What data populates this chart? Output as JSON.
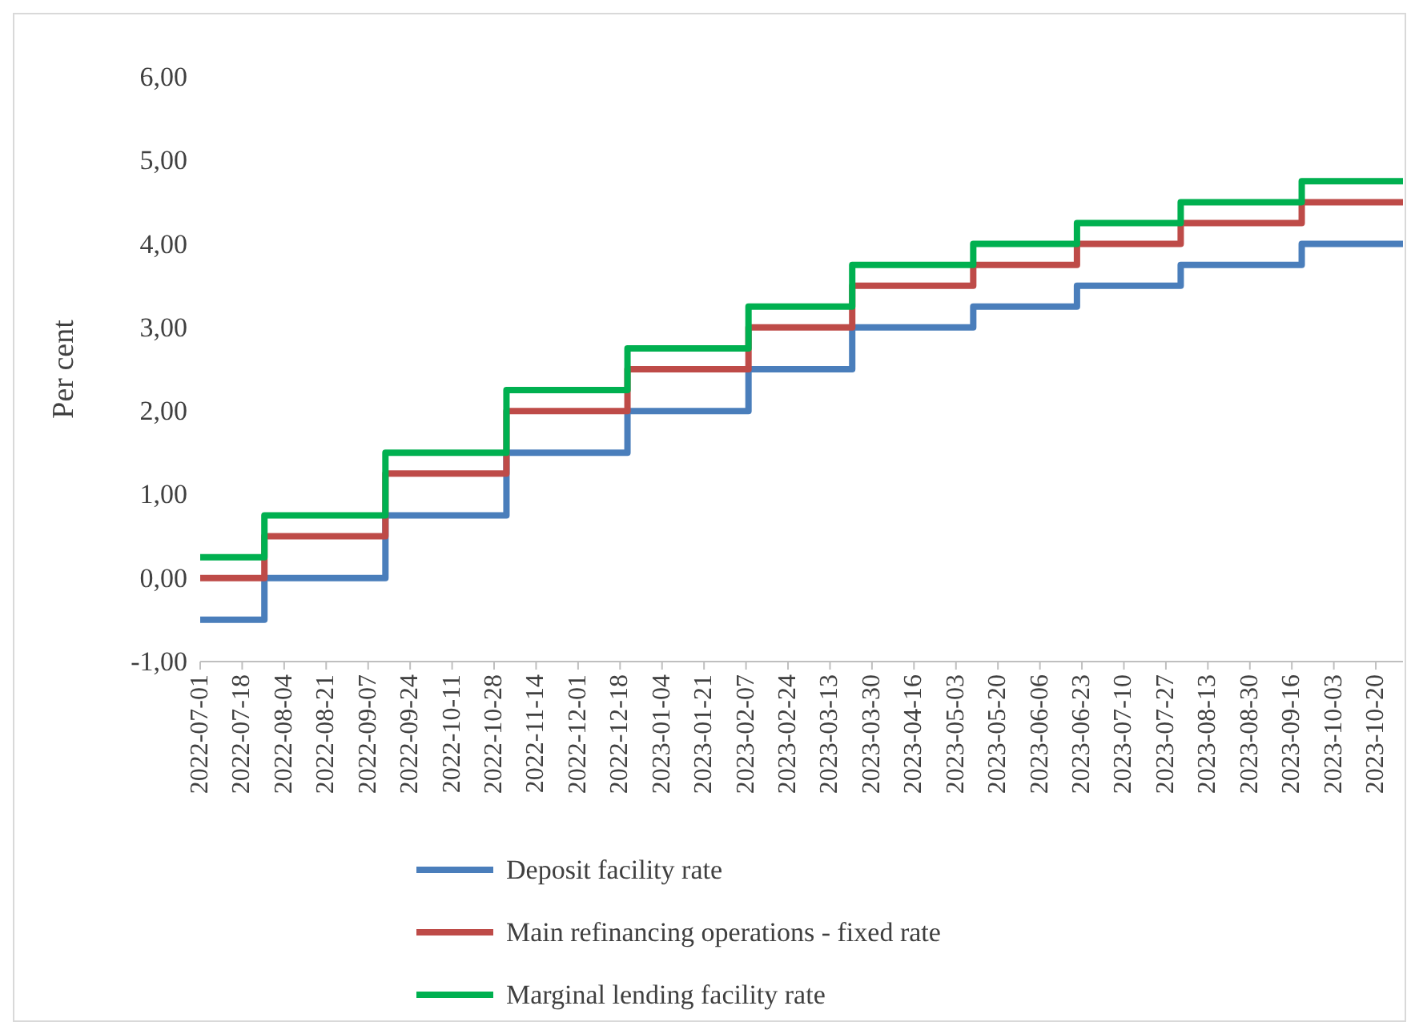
{
  "chart_data": {
    "type": "step",
    "ylabel": "Per cent",
    "xlim": [
      "2022-07-01",
      "2023-10-31"
    ],
    "ylim": [
      -1,
      6
    ],
    "yticks": [
      {
        "value": -1,
        "label": "-1,00"
      },
      {
        "value": 0,
        "label": "0,00"
      },
      {
        "value": 1,
        "label": "1,00"
      },
      {
        "value": 2,
        "label": "2,00"
      },
      {
        "value": 3,
        "label": "3,00"
      },
      {
        "value": 4,
        "label": "4,00"
      },
      {
        "value": 5,
        "label": "5,00"
      },
      {
        "value": 6,
        "label": "6,00"
      }
    ],
    "xticks": [
      "2022-07-01",
      "2022-07-18",
      "2022-08-04",
      "2022-08-21",
      "2022-09-07",
      "2022-09-24",
      "2022-10-11",
      "2022-10-28",
      "2022-11-14",
      "2022-12-01",
      "2022-12-18",
      "2023-01-04",
      "2023-01-21",
      "2023-02-07",
      "2023-02-24",
      "2023-03-13",
      "2023-03-30",
      "2023-04-16",
      "2023-05-03",
      "2023-05-20",
      "2023-06-06",
      "2023-06-23",
      "2023-07-10",
      "2023-07-27",
      "2023-08-13",
      "2023-08-30",
      "2023-09-16",
      "2023-10-03",
      "2023-10-20"
    ],
    "grid": false,
    "legend": "bottom",
    "line_style": "solid",
    "marker": "none",
    "x": [
      "2022-07-01",
      "2022-07-27",
      "2022-09-14",
      "2022-11-02",
      "2022-12-21",
      "2023-02-08",
      "2023-03-22",
      "2023-05-10",
      "2023-06-21",
      "2023-08-02",
      "2023-09-20",
      "2023-10-31"
    ],
    "series": [
      {
        "name": "Deposit facility rate",
        "color": "#4a7ebb",
        "values": [
          -0.5,
          0,
          0.75,
          1.5,
          2,
          2.5,
          3,
          3.25,
          3.5,
          3.75,
          4,
          4
        ]
      },
      {
        "name": "Main refinancing operations - fixed rate",
        "color": "#be4b48",
        "values": [
          0,
          0.5,
          1.25,
          2,
          2.5,
          3,
          3.5,
          3.75,
          4,
          4.25,
          4.5,
          4.5
        ]
      },
      {
        "name": "Marginal lending facility rate",
        "color": "#00b050",
        "values": [
          0.25,
          0.75,
          1.5,
          2.25,
          2.75,
          3.25,
          3.75,
          4,
          4.25,
          4.5,
          4.75,
          4.75
        ]
      }
    ]
  }
}
